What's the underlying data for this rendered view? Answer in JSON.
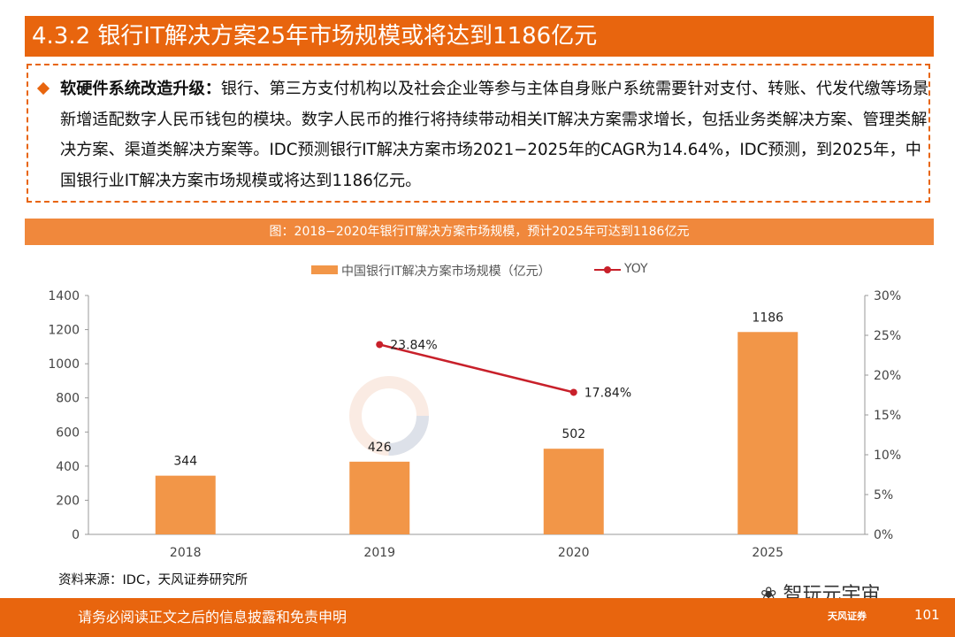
{
  "header": {
    "title": "4.3.2 银行IT解决方案25年市场规模或将达到1186亿元"
  },
  "summary": {
    "lead": "软硬件系统改造升级：",
    "body": "银行、第三方支付机构以及社会企业等参与主体自身账户系统需要针对支付、转账、代发代缴等场景新增适配数字人民币钱包的模块。数字人民币的推行将持续带动相关IT解决方案需求增长，包括业务类解决方案、管理类解决方案、渠道类解决方案等。IDC预测银行IT解决方案市场2021−2025年的CAGR为14.64%，IDC预测，到2025年，中国银行业IT解决方案市场规模或将达到1186亿元。"
  },
  "figure": {
    "caption": "图：2018−2020年银行IT解决方案市场规模，预计2025年可达到1186亿元"
  },
  "chart_data": {
    "type": "bar",
    "categories": [
      "2018",
      "2019",
      "2020",
      "2025"
    ],
    "series": [
      {
        "name": "中国银行IT解决方案市场规模（亿元）",
        "type": "bar",
        "axis": "left",
        "values": [
          344,
          426,
          502,
          1186
        ],
        "color": "#F29648"
      },
      {
        "name": "YOY",
        "type": "line",
        "axis": "right",
        "values": [
          null,
          23.84,
          17.84,
          null
        ],
        "labels": [
          "",
          "23.84%",
          "17.84%",
          ""
        ],
        "color": "#C8202A"
      }
    ],
    "y_left": {
      "ylim": [
        0,
        1400
      ],
      "ticks": [
        "0",
        "200",
        "400",
        "600",
        "800",
        "1000",
        "1200",
        "1400"
      ]
    },
    "y_right": {
      "ylim": [
        0,
        30
      ],
      "ticks": [
        "0%",
        "5%",
        "10%",
        "15%",
        "20%",
        "25%",
        "30%"
      ]
    },
    "legend": "top-center",
    "grid": false
  },
  "source": "资料来源：IDC，天风证券研究所",
  "watermark": {
    "brand": "智玩元宇宙"
  },
  "footer": {
    "disclaimer": "请务必阅读正文之后的信息披露和免责申明",
    "brand": "天风证券",
    "page": "101"
  },
  "colors": {
    "accent": "#E8650E",
    "caption_bg": "#F0883C",
    "bar": "#F29648",
    "line": "#C8202A"
  }
}
